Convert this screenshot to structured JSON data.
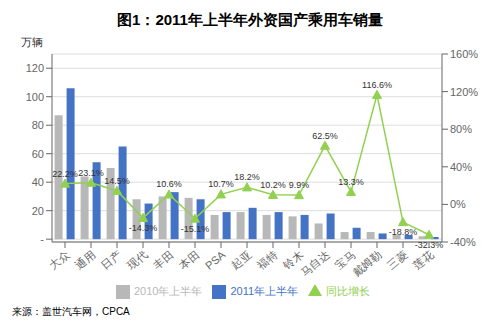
{
  "chart_data": {
    "type": "bar",
    "title": "图1：2011年上半年外资国产乘用车销量",
    "categories": [
      "大众",
      "通用",
      "日产",
      "现代",
      "丰田",
      "本田",
      "PSA",
      "起亚",
      "福特",
      "铃木",
      "马自达",
      "宝马",
      "戴姆勒",
      "三菱",
      "莲花"
    ],
    "series": [
      {
        "name": "2010年上半年",
        "color": "#b8b8b8",
        "values": [
          87,
          44,
          50,
          28,
          30,
          29,
          17,
          19,
          17,
          16,
          11,
          5,
          5,
          3,
          2
        ]
      },
      {
        "name": "2011年上半年",
        "color": "#4472c4",
        "values": [
          106,
          54,
          65,
          25,
          33,
          28,
          19,
          22,
          19,
          17,
          18,
          8,
          4,
          3,
          1.5
        ]
      },
      {
        "name": "同比增长",
        "type": "line",
        "axis": "y2",
        "color": "#92d050",
        "marker": "triangle",
        "data_labels": true,
        "values": [
          22.2,
          23.1,
          14.5,
          -14.3,
          10.6,
          -15.1,
          10.7,
          18.2,
          10.2,
          9.9,
          62.5,
          13.3,
          116.6,
          -18.8,
          -32.3
        ],
        "value_labels": [
          "22.2%",
          "23.1%",
          "14.5%",
          "-14.3%",
          "10.6%",
          "-15.1%",
          "10.7%",
          "18.2%",
          "10.2%",
          "9.9%",
          "62.5%",
          "13.3%",
          "116.6%",
          "-18.8%",
          "-32.3%"
        ]
      }
    ],
    "ylabel": "万辆",
    "ylim": [
      -2,
      130
    ],
    "yticks": [
      {
        "value": 0,
        "label": "-"
      },
      20,
      40,
      60,
      80,
      100,
      120
    ],
    "y2lim": [
      -40,
      160
    ],
    "y2ticks": [
      {
        "value": -40,
        "label": "-40%"
      },
      {
        "value": 0,
        "label": "0%"
      },
      {
        "value": 40,
        "label": "40%"
      },
      {
        "value": 80,
        "label": "80%"
      },
      {
        "value": 120,
        "label": "120%"
      },
      {
        "value": 160,
        "label": "160%"
      }
    ],
    "grid": true,
    "legend": "bottom",
    "annotations": [
      "来源：盖世汽车网，CPCA"
    ]
  }
}
